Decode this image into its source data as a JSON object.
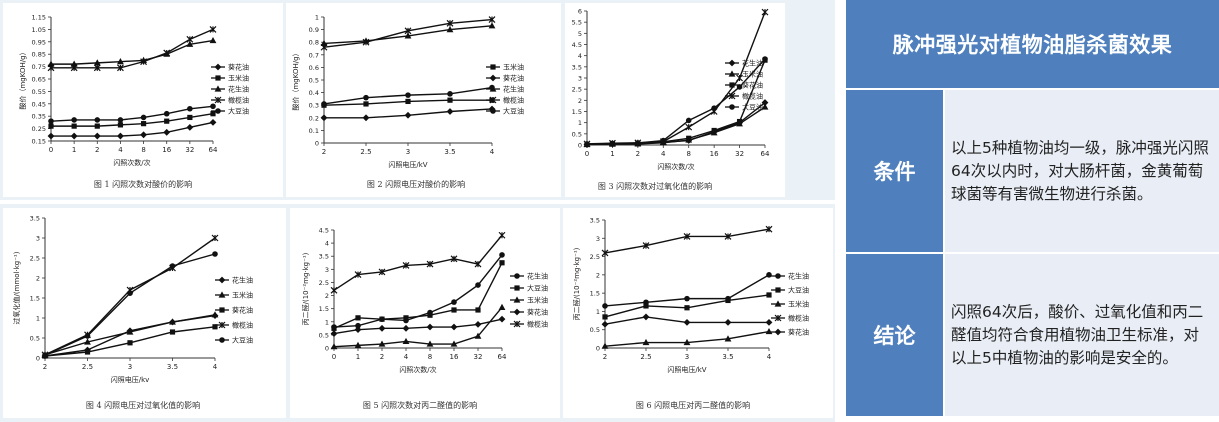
{
  "sidebar": {
    "title": "脉冲强光对植物油脂杀菌效果",
    "rows": [
      {
        "label": "条件",
        "text": "以上5种植物油均一级，脉冲强光闪照64次以内时，对大肠杆菌，金黄葡萄球菌等有害微生物进行杀菌。"
      },
      {
        "label": "结论",
        "text": "闪照64次后，酸价、过氧化值和丙二醛值均符合食用植物油卫生标准，对以上5中植物油的影响是安全的。"
      }
    ]
  },
  "chart_data": [
    {
      "type": "line",
      "caption": "图 1  闪照次数对酸价的影响",
      "xlabel": "闪照次数/次",
      "ylabel": "酸价（mgKOH/g）",
      "categories": [
        "0",
        "1",
        "2",
        "4",
        "8",
        "16",
        "32",
        "64"
      ],
      "yticks": [
        "0.15",
        "0.25",
        "0.35",
        "0.45",
        "0.55",
        "0.65",
        "0.75",
        "0.85",
        "0.95",
        "1.05",
        "1.15"
      ],
      "ylim": [
        0.15,
        1.15
      ],
      "legend": [
        "葵花油",
        "玉米油",
        "花生油",
        "橄榄油",
        "大豆油"
      ],
      "series": [
        {
          "name": "葵花油",
          "marker": "diamond",
          "values": [
            0.19,
            0.19,
            0.19,
            0.19,
            0.2,
            0.22,
            0.26,
            0.3
          ]
        },
        {
          "name": "玉米油",
          "marker": "square",
          "values": [
            0.27,
            0.27,
            0.27,
            0.28,
            0.29,
            0.31,
            0.34,
            0.37
          ]
        },
        {
          "name": "花生油",
          "marker": "triangle",
          "values": [
            0.77,
            0.77,
            0.78,
            0.79,
            0.8,
            0.85,
            0.93,
            0.96
          ]
        },
        {
          "name": "橄榄油",
          "marker": "x",
          "values": [
            0.74,
            0.74,
            0.74,
            0.74,
            0.79,
            0.86,
            0.97,
            1.05
          ]
        },
        {
          "name": "大豆油",
          "marker": "circle",
          "values": [
            0.31,
            0.32,
            0.32,
            0.32,
            0.34,
            0.37,
            0.41,
            0.43
          ]
        }
      ]
    },
    {
      "type": "line",
      "caption": "图 2   闪照电压对酸价的影响",
      "xlabel": "闪照电压/kV",
      "ylabel": "酸价（mgKOH/g）",
      "categories": [
        "2",
        "2.5",
        "3",
        "3.5",
        "4"
      ],
      "yticks": [
        "0",
        "0.1",
        "0.2",
        "0.3",
        "0.4",
        "0.5",
        "0.6",
        "0.7",
        "0.8",
        "0.9",
        "1"
      ],
      "ylim": [
        0,
        1
      ],
      "legend": [
        "玉米油",
        "葵花油",
        "花生油",
        "橄榄油",
        "大豆油"
      ],
      "series": [
        {
          "name": "玉米油",
          "marker": "square",
          "values": [
            0.3,
            0.31,
            0.33,
            0.34,
            0.34
          ]
        },
        {
          "name": "葵花油",
          "marker": "diamond",
          "values": [
            0.2,
            0.2,
            0.22,
            0.25,
            0.27
          ]
        },
        {
          "name": "花生油",
          "marker": "triangle",
          "values": [
            0.79,
            0.81,
            0.85,
            0.9,
            0.93
          ]
        },
        {
          "name": "橄榄油",
          "marker": "x",
          "values": [
            0.76,
            0.8,
            0.89,
            0.95,
            0.98
          ]
        },
        {
          "name": "大豆油",
          "marker": "circle",
          "values": [
            0.31,
            0.36,
            0.38,
            0.39,
            0.44
          ]
        }
      ]
    },
    {
      "type": "line",
      "caption": "图 3   闪照次数对过氧化值的影响",
      "xlabel": "闪照次数/次",
      "ylabel": "过氧化值（mmol/kg）",
      "categories": [
        "0",
        "1",
        "2",
        "4",
        "8",
        "16",
        "32",
        "64"
      ],
      "yticks": [
        "0",
        "0.5",
        "1",
        "1.5",
        "2",
        "2.5",
        "3",
        "3.5",
        "4",
        "4.5",
        "5",
        "5.5",
        "6"
      ],
      "ylim": [
        0,
        6
      ],
      "legend": [
        "花生油",
        "玉米油",
        "葵花油",
        "橄榄油",
        "大豆油"
      ],
      "series": [
        {
          "name": "花生油",
          "marker": "diamond",
          "values": [
            0.02,
            0.05,
            0.06,
            0.12,
            0.2,
            0.6,
            1.0,
            1.9
          ]
        },
        {
          "name": "玉米油",
          "marker": "triangle",
          "values": [
            0.02,
            0.04,
            0.05,
            0.1,
            0.22,
            0.55,
            0.95,
            1.7
          ]
        },
        {
          "name": "葵花油",
          "marker": "square",
          "values": [
            0.03,
            0.06,
            0.08,
            0.14,
            0.3,
            0.65,
            1.05,
            3.8
          ]
        },
        {
          "name": "橄榄油",
          "marker": "x",
          "values": [
            0.05,
            0.08,
            0.1,
            0.15,
            0.8,
            1.5,
            3.0,
            5.95
          ]
        },
        {
          "name": "大豆油",
          "marker": "circle",
          "values": [
            0.04,
            0.07,
            0.09,
            0.2,
            1.1,
            1.65,
            2.6,
            3.85
          ]
        }
      ]
    },
    {
      "type": "line",
      "caption": "图 4    闪照电压对过氧化值的影响",
      "xlabel": "闪照电压/kv",
      "ylabel": "过氧化值/(mmol·kg⁻¹)",
      "categories": [
        "2",
        "2.5",
        "3",
        "3.5",
        "4"
      ],
      "yticks": [
        "0",
        "0.5",
        "1",
        "1.5",
        "2",
        "2.5",
        "3",
        "3.5"
      ],
      "ylim": [
        0,
        3.5
      ],
      "legend": [
        "花生油",
        "玉米油",
        "葵花油",
        "橄榄油",
        "大豆油"
      ],
      "series": [
        {
          "name": "花生油",
          "marker": "diamond",
          "values": [
            0.05,
            0.2,
            0.68,
            0.9,
            1.06
          ]
        },
        {
          "name": "玉米油",
          "marker": "triangle",
          "values": [
            0.08,
            0.4,
            0.65,
            0.9,
            1.08
          ]
        },
        {
          "name": "葵花油",
          "marker": "square",
          "values": [
            0.05,
            0.15,
            0.38,
            0.65,
            0.78
          ]
        },
        {
          "name": "橄榄油",
          "marker": "x",
          "values": [
            0.08,
            0.58,
            1.7,
            2.25,
            3.0
          ]
        },
        {
          "name": "大豆油",
          "marker": "circle",
          "values": [
            0.07,
            0.55,
            1.62,
            2.3,
            2.6
          ]
        }
      ]
    },
    {
      "type": "line",
      "caption": "图 5   闪照次数对丙二醛值的影响",
      "xlabel": "闪照次数/次",
      "ylabel": "丙二醛/(10⁻²mg·kg⁻¹)",
      "categories": [
        "0",
        "1",
        "2",
        "4",
        "8",
        "16",
        "32",
        "64"
      ],
      "yticks": [
        "0",
        "0.5",
        "1",
        "1.5",
        "2",
        "2.5",
        "3",
        "3.5",
        "4",
        "4.5"
      ],
      "ylim": [
        0,
        4.5
      ],
      "legend": [
        "花生油",
        "大豆油",
        "玉米油",
        "葵花油",
        "橄榄油"
      ],
      "series": [
        {
          "name": "花生油",
          "marker": "circle",
          "values": [
            0.8,
            0.85,
            1.1,
            1.05,
            1.35,
            1.75,
            2.4,
            3.55
          ]
        },
        {
          "name": "大豆油",
          "marker": "square",
          "values": [
            0.75,
            1.15,
            1.1,
            1.15,
            1.25,
            1.45,
            1.45,
            3.25
          ]
        },
        {
          "name": "玉米油",
          "marker": "triangle",
          "values": [
            0.05,
            0.1,
            0.15,
            0.25,
            0.15,
            0.15,
            0.45,
            1.55
          ]
        },
        {
          "name": "葵花油",
          "marker": "diamond",
          "values": [
            0.55,
            0.7,
            0.75,
            0.75,
            0.8,
            0.8,
            0.9,
            1.1
          ]
        },
        {
          "name": "橄榄油",
          "marker": "x",
          "values": [
            2.2,
            2.8,
            2.9,
            3.15,
            3.2,
            3.4,
            3.2,
            4.3
          ]
        }
      ]
    },
    {
      "type": "line",
      "caption": "图 6   闪照电压对丙二醛值的影响",
      "xlabel": "闪照电压/kV",
      "ylabel": "丙二醛/(10⁻²mg·kg⁻¹)",
      "categories": [
        "2",
        "2.5",
        "3",
        "3.5",
        "4"
      ],
      "yticks": [
        "0",
        "0.5",
        "1",
        "1.5",
        "2",
        "2.5",
        "3",
        "3.5"
      ],
      "ylim": [
        0,
        3.5
      ],
      "legend": [
        "花生油",
        "大豆油",
        "玉米油",
        "橄榄油",
        "葵花油"
      ],
      "series": [
        {
          "name": "花生油",
          "marker": "circle",
          "values": [
            1.15,
            1.25,
            1.35,
            1.35,
            2.0
          ]
        },
        {
          "name": "大豆油",
          "marker": "square",
          "values": [
            0.85,
            1.15,
            1.1,
            1.3,
            1.45
          ]
        },
        {
          "name": "玉米油",
          "marker": "triangle",
          "values": [
            0.05,
            0.15,
            0.15,
            0.25,
            0.45
          ]
        },
        {
          "name": "橄榄油",
          "marker": "x",
          "values": [
            2.6,
            2.8,
            3.05,
            3.05,
            3.25
          ]
        },
        {
          "name": "葵花油",
          "marker": "diamond",
          "values": [
            0.65,
            0.85,
            0.7,
            0.7,
            0.7
          ]
        }
      ]
    }
  ]
}
